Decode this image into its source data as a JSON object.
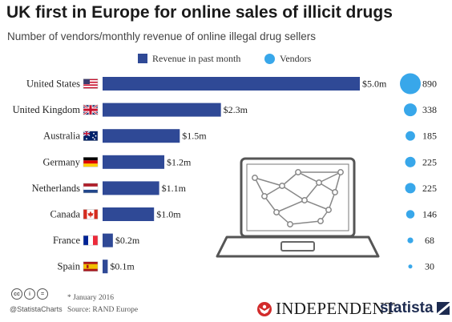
{
  "title": "UK first in Europe for online sales of illicit drugs",
  "subtitle": "Number of vendors/monthly revenue of online illegal drug sellers",
  "legend": {
    "revenue": "Revenue in past month",
    "vendors": "Vendors"
  },
  "colors": {
    "bar": "#2f4996",
    "bubble": "#38a7ea"
  },
  "chart_data": {
    "type": "bar",
    "orientation": "horizontal",
    "categories": [
      "United States",
      "United Kingdom",
      "Australia",
      "Germany",
      "Netherlands",
      "Canada",
      "France",
      "Spain"
    ],
    "series": [
      {
        "name": "Revenue in past month",
        "values": [
          5.0,
          2.3,
          1.5,
          1.2,
          1.1,
          1.0,
          0.2,
          0.1
        ],
        "labels": [
          "$5.0m",
          "$2.3m",
          "$1.5m",
          "$1.2m",
          "$1.1m",
          "$1.0m",
          "$0.2m",
          "$0.1m"
        ]
      },
      {
        "name": "Vendors",
        "values": [
          890,
          338,
          185,
          225,
          225,
          146,
          68,
          30
        ]
      }
    ],
    "flags": [
      "us-flag-icon",
      "uk-flag-icon",
      "australia-flag-icon",
      "germany-flag-icon",
      "netherlands-flag-icon",
      "canada-flag-icon",
      "france-flag-icon",
      "spain-flag-icon"
    ],
    "xlim": [
      0,
      5.0
    ]
  },
  "footer": {
    "note": "* January 2016",
    "source": "Source: RAND Europe",
    "handle": "@StatistaCharts",
    "cc_badges": [
      "cc",
      "i",
      "="
    ],
    "independent": "INDEPENDENT",
    "statista": "statista"
  }
}
